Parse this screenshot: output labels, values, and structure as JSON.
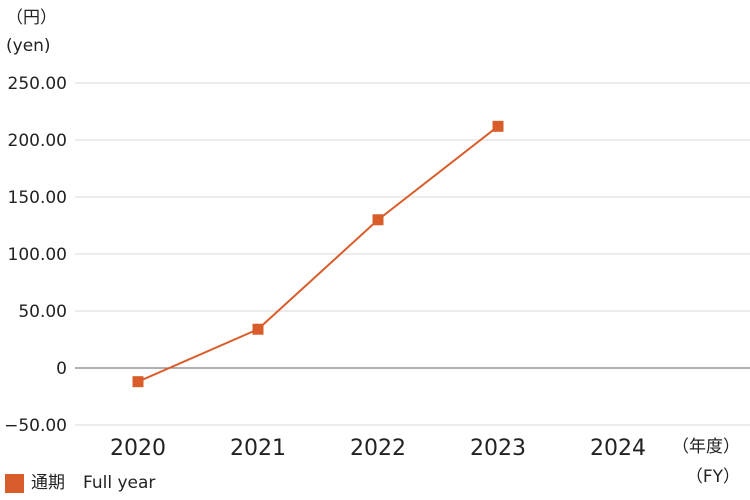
{
  "chart_data": {
    "type": "line",
    "y_unit_jp": "（円）",
    "y_unit_en": "(yen)",
    "x_unit_jp": "（年度）",
    "x_unit_en": "（FY）",
    "categories": [
      "2020",
      "2021",
      "2022",
      "2023",
      "2024"
    ],
    "y_ticks": [
      250,
      200,
      150,
      100,
      50,
      0,
      -50
    ],
    "y_tick_labels": [
      "250.00",
      "200.00",
      "150.00",
      "100.00",
      "50.00",
      "0",
      "−50.00"
    ],
    "ylim": [
      -50,
      250
    ],
    "grid": true,
    "series": [
      {
        "name_jp": "通期",
        "name_en": "Full year",
        "values": [
          -12,
          34,
          130,
          212,
          null
        ]
      }
    ],
    "legend_position": "bottom-left"
  },
  "colors": {
    "series": "#d95d2b",
    "grid": "#d9d9d9",
    "zero_line": "#808080",
    "text": "#222222"
  }
}
